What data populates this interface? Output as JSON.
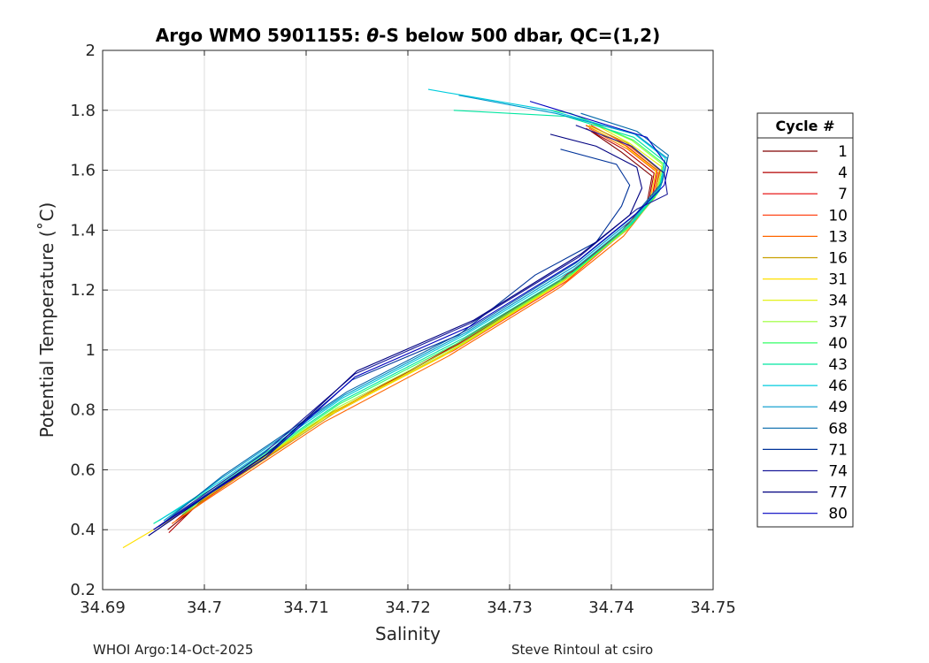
{
  "chart_data": {
    "type": "line",
    "title_prefix": "Argo WMO 5901155: ",
    "title_theta": "θ",
    "title_suffix": "-S below 500 dbar,  QC=(1,2)",
    "xlabel": "Salinity",
    "ylabel": "Potential Temperature (˚C)",
    "xlim": [
      34.69,
      34.75
    ],
    "ylim": [
      0.2,
      2.0
    ],
    "xticks": [
      34.69,
      34.7,
      34.71,
      34.72,
      34.73,
      34.74,
      34.75
    ],
    "xtick_labels": [
      "34.69",
      "34.7",
      "34.71",
      "34.72",
      "34.73",
      "34.74",
      "34.75"
    ],
    "yticks": [
      0.2,
      0.4,
      0.6,
      0.8,
      1.0,
      1.2,
      1.4,
      1.6,
      1.8,
      2.0
    ],
    "ytick_labels": [
      "0.2",
      "0.4",
      "0.6",
      "0.8",
      "1",
      "1.2",
      "1.4",
      "1.6",
      "1.8",
      "2"
    ],
    "grid": true,
    "legend_title": "Cycle #",
    "legend_position": "right",
    "series": [
      {
        "name": "1",
        "color": "#800000",
        "points": [
          [
            34.6964,
            0.4
          ],
          [
            34.7,
            0.5
          ],
          [
            34.712,
            0.78
          ],
          [
            34.724,
            1.0
          ],
          [
            34.735,
            1.23
          ],
          [
            34.7405,
            1.38
          ],
          [
            34.7435,
            1.49
          ],
          [
            34.744,
            1.58
          ],
          [
            34.741,
            1.66
          ],
          [
            34.738,
            1.73
          ]
        ]
      },
      {
        "name": "4",
        "color": "#b30000",
        "points": [
          [
            34.6965,
            0.39
          ],
          [
            34.6995,
            0.49
          ],
          [
            34.7116,
            0.77
          ],
          [
            34.7238,
            1.0
          ],
          [
            34.7348,
            1.23
          ],
          [
            34.7408,
            1.39
          ],
          [
            34.7437,
            1.5
          ],
          [
            34.7442,
            1.59
          ],
          [
            34.7412,
            1.67
          ],
          [
            34.7375,
            1.74
          ]
        ]
      },
      {
        "name": "7",
        "color": "#e60000",
        "points": [
          [
            34.6972,
            0.43
          ],
          [
            34.7,
            0.51
          ],
          [
            34.7125,
            0.79
          ],
          [
            34.7245,
            1.01
          ],
          [
            34.7352,
            1.23
          ],
          [
            34.7412,
            1.4
          ],
          [
            34.744,
            1.51
          ],
          [
            34.7445,
            1.6
          ],
          [
            34.7415,
            1.68
          ],
          [
            34.7375,
            1.75
          ]
        ]
      },
      {
        "name": "10",
        "color": "#ff3300",
        "points": [
          [
            34.6976,
            0.44
          ],
          [
            34.7005,
            0.51
          ],
          [
            34.7124,
            0.79
          ],
          [
            34.7246,
            1.0
          ],
          [
            34.7356,
            1.23
          ],
          [
            34.7414,
            1.4
          ],
          [
            34.7442,
            1.51
          ],
          [
            34.7448,
            1.6
          ],
          [
            34.7418,
            1.68
          ],
          [
            34.738,
            1.75
          ]
        ]
      },
      {
        "name": "13",
        "color": "#ff6600",
        "points": [
          [
            34.6968,
            0.42
          ],
          [
            34.6998,
            0.49
          ],
          [
            34.7118,
            0.76
          ],
          [
            34.724,
            0.98
          ],
          [
            34.735,
            1.21
          ],
          [
            34.7412,
            1.38
          ],
          [
            34.744,
            1.5
          ],
          [
            34.7446,
            1.59
          ],
          [
            34.7416,
            1.67
          ],
          [
            34.7378,
            1.74
          ]
        ]
      },
      {
        "name": "16",
        "color": "#c8a000",
        "points": [
          [
            34.698,
            0.45
          ],
          [
            34.7008,
            0.52
          ],
          [
            34.7128,
            0.79
          ],
          [
            34.7249,
            1.01
          ],
          [
            34.7356,
            1.24
          ],
          [
            34.7415,
            1.4
          ],
          [
            34.7443,
            1.51
          ],
          [
            34.7447,
            1.6
          ],
          [
            34.7416,
            1.69
          ],
          [
            34.7378,
            1.75
          ]
        ]
      },
      {
        "name": "31",
        "color": "#ffe000",
        "points": [
          [
            34.692,
            0.34
          ],
          [
            34.698,
            0.46
          ],
          [
            34.711,
            0.76
          ],
          [
            34.7235,
            0.98
          ],
          [
            34.7348,
            1.22
          ],
          [
            34.741,
            1.39
          ],
          [
            34.7438,
            1.5
          ],
          [
            34.7444,
            1.6
          ],
          [
            34.7414,
            1.68
          ],
          [
            34.7376,
            1.75
          ]
        ]
      },
      {
        "name": "34",
        "color": "#e0f000",
        "points": [
          [
            34.6985,
            0.47
          ],
          [
            34.701,
            0.53
          ],
          [
            34.713,
            0.8
          ],
          [
            34.725,
            1.01
          ],
          [
            34.7358,
            1.24
          ],
          [
            34.7417,
            1.41
          ],
          [
            34.7444,
            1.52
          ],
          [
            34.745,
            1.61
          ],
          [
            34.7418,
            1.69
          ],
          [
            34.738,
            1.76
          ]
        ]
      },
      {
        "name": "37",
        "color": "#99ff33",
        "points": [
          [
            34.6982,
            0.46
          ],
          [
            34.7012,
            0.54
          ],
          [
            34.7132,
            0.81
          ],
          [
            34.7252,
            1.02
          ],
          [
            34.736,
            1.25
          ],
          [
            34.7418,
            1.41
          ],
          [
            34.7445,
            1.52
          ],
          [
            34.745,
            1.62
          ],
          [
            34.742,
            1.7
          ],
          [
            34.738,
            1.76
          ]
        ]
      },
      {
        "name": "40",
        "color": "#33ff66",
        "points": [
          [
            34.6978,
            0.45
          ],
          [
            34.7012,
            0.54
          ],
          [
            34.7133,
            0.82
          ],
          [
            34.7253,
            1.03
          ],
          [
            34.736,
            1.25
          ],
          [
            34.7419,
            1.42
          ],
          [
            34.7446,
            1.53
          ],
          [
            34.7452,
            1.62
          ],
          [
            34.7422,
            1.7
          ],
          [
            34.736,
            1.79
          ],
          [
            34.734,
            1.8
          ]
        ]
      },
      {
        "name": "43",
        "color": "#00e6a0",
        "points": [
          [
            34.695,
            0.42
          ],
          [
            34.7014,
            0.55
          ],
          [
            34.7135,
            0.83
          ],
          [
            34.7255,
            1.04
          ],
          [
            34.7362,
            1.26
          ],
          [
            34.742,
            1.42
          ],
          [
            34.7447,
            1.53
          ],
          [
            34.7452,
            1.63
          ],
          [
            34.7422,
            1.71
          ],
          [
            34.7355,
            1.78
          ],
          [
            34.7245,
            1.8
          ]
        ]
      },
      {
        "name": "46",
        "color": "#00ccdd",
        "points": [
          [
            34.6955,
            0.43
          ],
          [
            34.7015,
            0.56
          ],
          [
            34.7136,
            0.84
          ],
          [
            34.7256,
            1.05
          ],
          [
            34.7363,
            1.27
          ],
          [
            34.7421,
            1.43
          ],
          [
            34.7448,
            1.54
          ],
          [
            34.7453,
            1.64
          ],
          [
            34.7423,
            1.72
          ],
          [
            34.734,
            1.8
          ],
          [
            34.722,
            1.87
          ]
        ]
      },
      {
        "name": "49",
        "color": "#0099cc",
        "points": [
          [
            34.696,
            0.43
          ],
          [
            34.7016,
            0.57
          ],
          [
            34.7138,
            0.85
          ],
          [
            34.7258,
            1.06
          ],
          [
            34.7364,
            1.28
          ],
          [
            34.7422,
            1.44
          ],
          [
            34.7449,
            1.55
          ],
          [
            34.7455,
            1.64
          ],
          [
            34.7424,
            1.72
          ],
          [
            34.7345,
            1.79
          ],
          [
            34.725,
            1.85
          ]
        ]
      },
      {
        "name": "68",
        "color": "#0066aa",
        "points": [
          [
            34.6955,
            0.41
          ],
          [
            34.7018,
            0.58
          ],
          [
            34.714,
            0.86
          ],
          [
            34.726,
            1.07
          ],
          [
            34.7365,
            1.29
          ],
          [
            34.7423,
            1.45
          ],
          [
            34.745,
            1.56
          ],
          [
            34.7456,
            1.65
          ],
          [
            34.7425,
            1.73
          ],
          [
            34.737,
            1.79
          ]
        ]
      },
      {
        "name": "71",
        "color": "#003399",
        "points": [
          [
            34.6955,
            0.41
          ],
          [
            34.706,
            0.65
          ],
          [
            34.7145,
            0.9
          ],
          [
            34.725,
            1.05
          ],
          [
            34.7325,
            1.25
          ],
          [
            34.7385,
            1.36
          ],
          [
            34.741,
            1.48
          ],
          [
            34.7418,
            1.55
          ],
          [
            34.7405,
            1.62
          ],
          [
            34.735,
            1.67
          ]
        ]
      },
      {
        "name": "74",
        "color": "#1a1a99",
        "points": [
          [
            34.695,
            0.4
          ],
          [
            34.706,
            0.66
          ],
          [
            34.7148,
            0.92
          ],
          [
            34.7262,
            1.09
          ],
          [
            34.7368,
            1.31
          ],
          [
            34.7425,
            1.47
          ],
          [
            34.7455,
            1.52
          ],
          [
            34.7452,
            1.59
          ],
          [
            34.742,
            1.68
          ],
          [
            34.7365,
            1.75
          ]
        ]
      },
      {
        "name": "77",
        "color": "#000080",
        "points": [
          [
            34.6945,
            0.38
          ],
          [
            34.7065,
            0.66
          ],
          [
            34.715,
            0.93
          ],
          [
            34.7265,
            1.1
          ],
          [
            34.737,
            1.32
          ],
          [
            34.7418,
            1.45
          ],
          [
            34.743,
            1.54
          ],
          [
            34.7425,
            1.61
          ],
          [
            34.7385,
            1.68
          ],
          [
            34.734,
            1.72
          ]
        ]
      },
      {
        "name": "80",
        "color": "#0000c0",
        "points": [
          [
            34.695,
            0.4
          ],
          [
            34.706,
            0.64
          ],
          [
            34.7148,
            0.91
          ],
          [
            34.7262,
            1.08
          ],
          [
            34.7368,
            1.3
          ],
          [
            34.7426,
            1.46
          ],
          [
            34.7452,
            1.55
          ],
          [
            34.7456,
            1.61
          ],
          [
            34.7435,
            1.71
          ],
          [
            34.732,
            1.83
          ]
        ]
      }
    ]
  },
  "footer": {
    "left": "WHOI Argo:14-Oct-2025",
    "right": "Steve Rintoul at csiro"
  }
}
